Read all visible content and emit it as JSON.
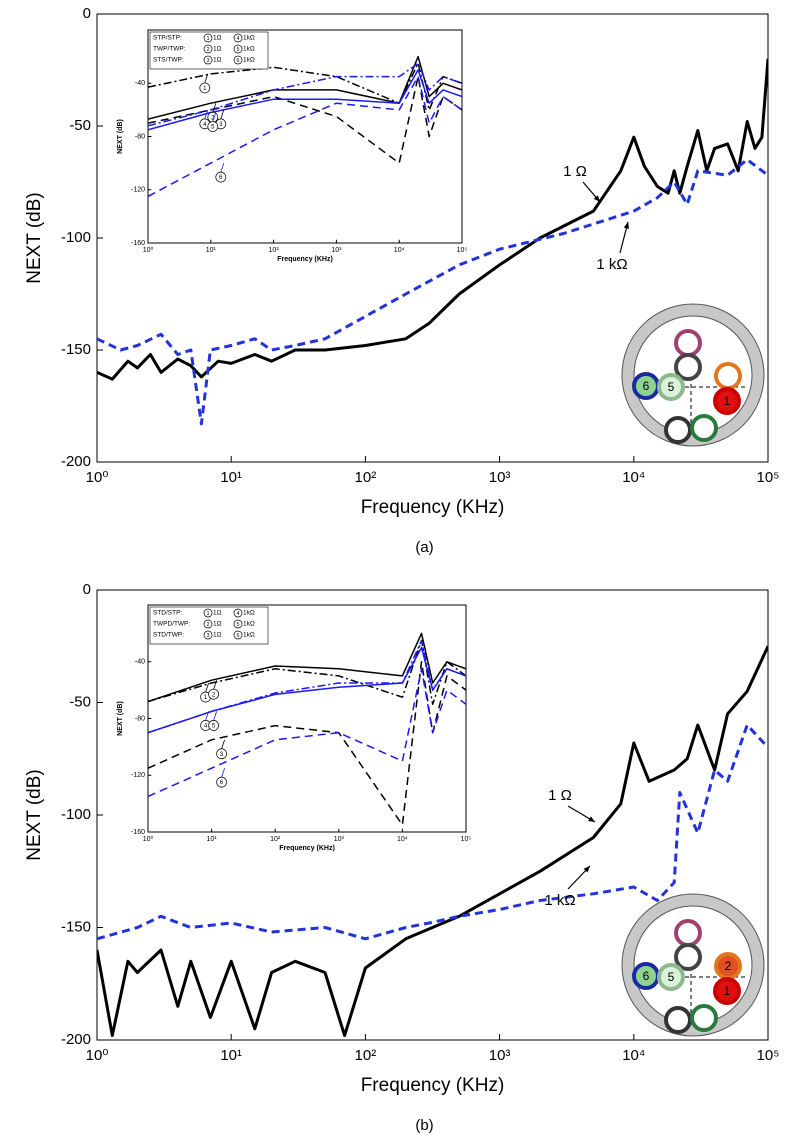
{
  "chart_data": [
    {
      "type": "line",
      "xlabel": "Frequency (KHz)",
      "ylabel": "NEXT (dB)",
      "caption": "(a)",
      "xlog": true,
      "xlim": [
        1,
        100000
      ],
      "ylim": [
        -200,
        0
      ],
      "xticks": [
        {
          "value": 1,
          "label": "10⁰"
        },
        {
          "value": 10,
          "label": "10¹"
        },
        {
          "value": 100,
          "label": "10²"
        },
        {
          "value": 1000,
          "label": "10³"
        },
        {
          "value": 10000,
          "label": "10⁴"
        },
        {
          "value": 100000,
          "label": "10⁵"
        }
      ],
      "yticks": [
        -200,
        -150,
        -100,
        -50,
        0
      ],
      "annotations": [
        "1 Ω",
        "1 kΩ"
      ],
      "cable_labels": [
        "6",
        "5",
        "1"
      ],
      "series": [
        {
          "color": "#000000",
          "dash": "solid",
          "x": [
            1,
            1.3,
            1.7,
            2,
            2.5,
            3,
            4,
            5,
            6,
            8,
            10,
            15,
            20,
            30,
            50,
            100,
            200,
            300,
            500,
            1000,
            2000,
            5000,
            8000,
            10000,
            12000,
            15000,
            18000,
            20000,
            22000,
            25000,
            30000,
            35000,
            40000,
            50000,
            60000,
            70000,
            80000,
            90000,
            100000
          ],
          "values": [
            -160,
            -163,
            -155,
            -158,
            -152,
            -160,
            -154,
            -157,
            -162,
            -155,
            -156,
            -152,
            -155,
            -150,
            -150,
            -148,
            -145,
            -138,
            -125,
            -112,
            -100,
            -88,
            -70,
            -55,
            -68,
            -77,
            -80,
            -70,
            -80,
            -68,
            -52,
            -70,
            -60,
            -58,
            -70,
            -48,
            -60,
            -55,
            -20
          ]
        },
        {
          "color": "#2233dd",
          "dash": "dashed",
          "x": [
            1,
            1.5,
            2,
            3,
            4,
            5,
            6,
            7,
            10,
            15,
            20,
            30,
            50,
            100,
            200,
            500,
            1000,
            3000,
            10000,
            15000,
            20000,
            25000,
            30000,
            50000,
            70000,
            100000
          ],
          "values": [
            -145,
            -150,
            -148,
            -143,
            -152,
            -150,
            -183,
            -150,
            -148,
            -145,
            -150,
            -148,
            -145,
            -135,
            -125,
            -112,
            -105,
            -98,
            -88,
            -82,
            -75,
            -85,
            -70,
            -72,
            -65,
            -72
          ]
        }
      ]
    },
    {
      "type": "line",
      "xlabel": "Frequency (KHz)",
      "ylabel": "NEXT (dB)",
      "xlog": true,
      "xlim": [
        1,
        100000
      ],
      "ylim": [
        -160,
        0
      ],
      "xticks": [
        {
          "value": 1,
          "label": "10⁰"
        },
        {
          "value": 10,
          "label": "10¹"
        },
        {
          "value": 100,
          "label": "10²"
        },
        {
          "value": 1000,
          "label": "10³"
        },
        {
          "value": 10000,
          "label": "10⁴"
        },
        {
          "value": 100000,
          "label": "10⁵"
        }
      ],
      "yticks": [
        -160,
        -120,
        -80,
        -40
      ],
      "legend_rows": [
        {
          "label": "STP/STP:",
          "items": [
            {
              "num": "1",
              "text": "1Ω"
            },
            {
              "num": "4",
              "text": "1kΩ"
            }
          ]
        },
        {
          "label": "TWP/TWP:",
          "items": [
            {
              "num": "2",
              "text": "1Ω"
            },
            {
              "num": "5",
              "text": "1kΩ"
            }
          ]
        },
        {
          "label": "STS/TWP:",
          "items": [
            {
              "num": "3",
              "text": "1Ω"
            },
            {
              "num": "6",
              "text": "1kΩ"
            }
          ]
        }
      ],
      "x": [
        1,
        10,
        100,
        1000,
        10000,
        20000,
        30000,
        50000,
        100000
      ],
      "series": [
        {
          "name": "1",
          "color": "#000000",
          "dash": "dashdot",
          "values": [
            -43,
            -33,
            -28,
            -35,
            -55,
            -25,
            -60,
            -35,
            -40
          ]
        },
        {
          "name": "2",
          "color": "#000000",
          "dash": "solid",
          "values": [
            -67,
            -55,
            -45,
            -45,
            -55,
            -20,
            -50,
            -40,
            -45
          ]
        },
        {
          "name": "3",
          "color": "#000000",
          "dash": "dashed",
          "values": [
            -70,
            -60,
            -50,
            -65,
            -100,
            -35,
            -80,
            -50,
            -60
          ]
        },
        {
          "name": "4",
          "color": "#1a1aff",
          "dash": "dashdot",
          "values": [
            -72,
            -60,
            -45,
            -35,
            -35,
            -25,
            -45,
            -35,
            -40
          ]
        },
        {
          "name": "5",
          "color": "#1a1aff",
          "dash": "solid",
          "values": [
            -75,
            -62,
            -52,
            -52,
            -55,
            -30,
            -55,
            -45,
            -50
          ]
        },
        {
          "name": "6",
          "color": "#1a1aff",
          "dash": "dashed",
          "values": [
            -125,
            -100,
            -75,
            -55,
            -60,
            -35,
            -70,
            -50,
            -60
          ]
        }
      ]
    },
    {
      "type": "line",
      "xlabel": "Frequency (KHz)",
      "ylabel": "NEXT (dB)",
      "caption": "(b)",
      "xlog": true,
      "xlim": [
        1,
        100000
      ],
      "ylim": [
        -200,
        0
      ],
      "xticks": [
        {
          "value": 1,
          "label": "10⁰"
        },
        {
          "value": 10,
          "label": "10¹"
        },
        {
          "value": 100,
          "label": "10²"
        },
        {
          "value": 1000,
          "label": "10³"
        },
        {
          "value": 10000,
          "label": "10⁴"
        },
        {
          "value": 100000,
          "label": "10⁵"
        }
      ],
      "yticks": [
        -200,
        -150,
        -100,
        -50,
        0
      ],
      "annotations": [
        "1 Ω",
        "1 kΩ"
      ],
      "cable_labels": [
        "6",
        "5",
        "2",
        "1"
      ],
      "series": [
        {
          "color": "#000000",
          "dash": "solid",
          "x": [
            1,
            1.3,
            1.7,
            2,
            3,
            4,
            5,
            7,
            10,
            15,
            20,
            30,
            50,
            70,
            100,
            200,
            500,
            1000,
            2000,
            5000,
            8000,
            10000,
            13000,
            20000,
            25000,
            30000,
            40000,
            50000,
            70000,
            100000
          ],
          "values": [
            -160,
            -198,
            -165,
            -170,
            -160,
            -185,
            -165,
            -190,
            -165,
            -195,
            -170,
            -165,
            -170,
            -198,
            -168,
            -155,
            -145,
            -135,
            -125,
            -110,
            -95,
            -68,
            -85,
            -80,
            -75,
            -60,
            -80,
            -55,
            -45,
            -25
          ]
        },
        {
          "color": "#2233dd",
          "dash": "dashed",
          "x": [
            1,
            2,
            3,
            5,
            10,
            20,
            50,
            100,
            200,
            300,
            500,
            1000,
            2000,
            5000,
            10000,
            15000,
            20000,
            22000,
            30000,
            40000,
            50000,
            70000,
            100000
          ],
          "values": [
            -155,
            -150,
            -145,
            -150,
            -148,
            -152,
            -150,
            -155,
            -150,
            -148,
            -145,
            -142,
            -138,
            -135,
            -132,
            -138,
            -130,
            -90,
            -108,
            -80,
            -85,
            -60,
            -70
          ]
        }
      ]
    },
    {
      "type": "line",
      "xlabel": "Frequency (KHz)",
      "ylabel": "NEXT (dB)",
      "xlog": true,
      "xlim": [
        1,
        100000
      ],
      "ylim": [
        -160,
        0
      ],
      "xticks": [
        {
          "value": 1,
          "label": "10⁰"
        },
        {
          "value": 10,
          "label": "10¹"
        },
        {
          "value": 100,
          "label": "10²"
        },
        {
          "value": 1000,
          "label": "10³"
        },
        {
          "value": 10000,
          "label": "10⁴"
        },
        {
          "value": 100000,
          "label": "10⁵"
        }
      ],
      "yticks": [
        -160,
        -120,
        -80,
        -40
      ],
      "legend_rows": [
        {
          "label": "STD/STP:",
          "items": [
            {
              "num": "1",
              "text": "1Ω"
            },
            {
              "num": "4",
              "text": "1kΩ"
            }
          ]
        },
        {
          "label": "TWPD/TWP:",
          "items": [
            {
              "num": "2",
              "text": "1Ω"
            },
            {
              "num": "5",
              "text": "1kΩ"
            }
          ]
        },
        {
          "label": "STD/TWP:",
          "items": [
            {
              "num": "3",
              "text": "1Ω"
            },
            {
              "num": "6",
              "text": "1kΩ"
            }
          ]
        }
      ],
      "x": [
        1,
        10,
        100,
        1000,
        10000,
        20000,
        30000,
        50000,
        100000
      ],
      "series": [
        {
          "name": "1",
          "color": "#000000",
          "dash": "dashdot",
          "values": [
            -68,
            -55,
            -45,
            -50,
            -65,
            -25,
            -70,
            -40,
            -50
          ]
        },
        {
          "name": "2",
          "color": "#000000",
          "dash": "solid",
          "values": [
            -68,
            -53,
            -43,
            -45,
            -50,
            -20,
            -55,
            -40,
            -45
          ]
        },
        {
          "name": "3",
          "color": "#000000",
          "dash": "dashed",
          "values": [
            -115,
            -95,
            -85,
            -90,
            -155,
            -40,
            -90,
            -50,
            -60
          ]
        },
        {
          "name": "4",
          "color": "#1a1aff",
          "dash": "dashdot",
          "values": [
            -90,
            -75,
            -62,
            -55,
            -55,
            -25,
            -60,
            -45,
            -50
          ]
        },
        {
          "name": "5",
          "color": "#1a1aff",
          "dash": "solid",
          "values": [
            -90,
            -75,
            -63,
            -58,
            -55,
            -30,
            -60,
            -45,
            -50
          ]
        },
        {
          "name": "6",
          "color": "#1a1aff",
          "dash": "dashed",
          "values": [
            -135,
            -115,
            -95,
            -90,
            -110,
            -45,
            -90,
            -60,
            -70
          ]
        }
      ]
    }
  ]
}
